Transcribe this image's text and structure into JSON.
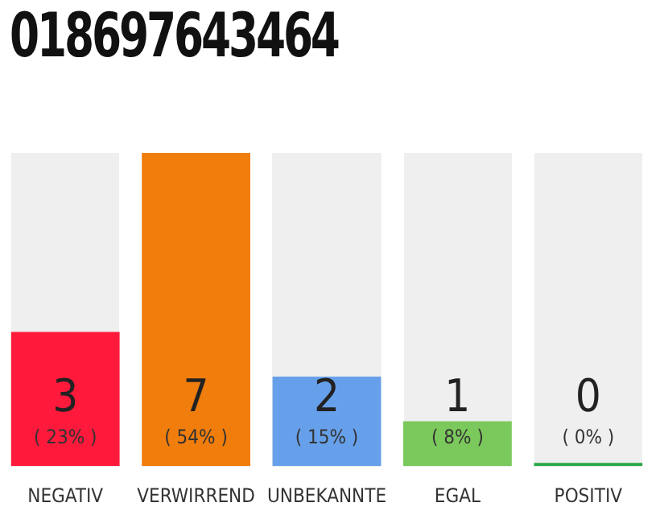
{
  "chart_data": {
    "type": "bar",
    "title": "018697643464",
    "categories": [
      "NEGATIV",
      "VERWIRREND",
      "UNBEKANNTE",
      "EGAL",
      "POSITIV"
    ],
    "values": [
      3,
      7,
      2,
      1,
      0
    ],
    "colors": [
      "#ff1a3c",
      "#f07d0c",
      "#67a0ea",
      "#7bc95c",
      "#2aa84a"
    ],
    "data_labels": true,
    "annotations": [
      "( 23% )",
      "( 54% )",
      "( 15% )",
      "( 8% )",
      "( 0% )"
    ]
  }
}
